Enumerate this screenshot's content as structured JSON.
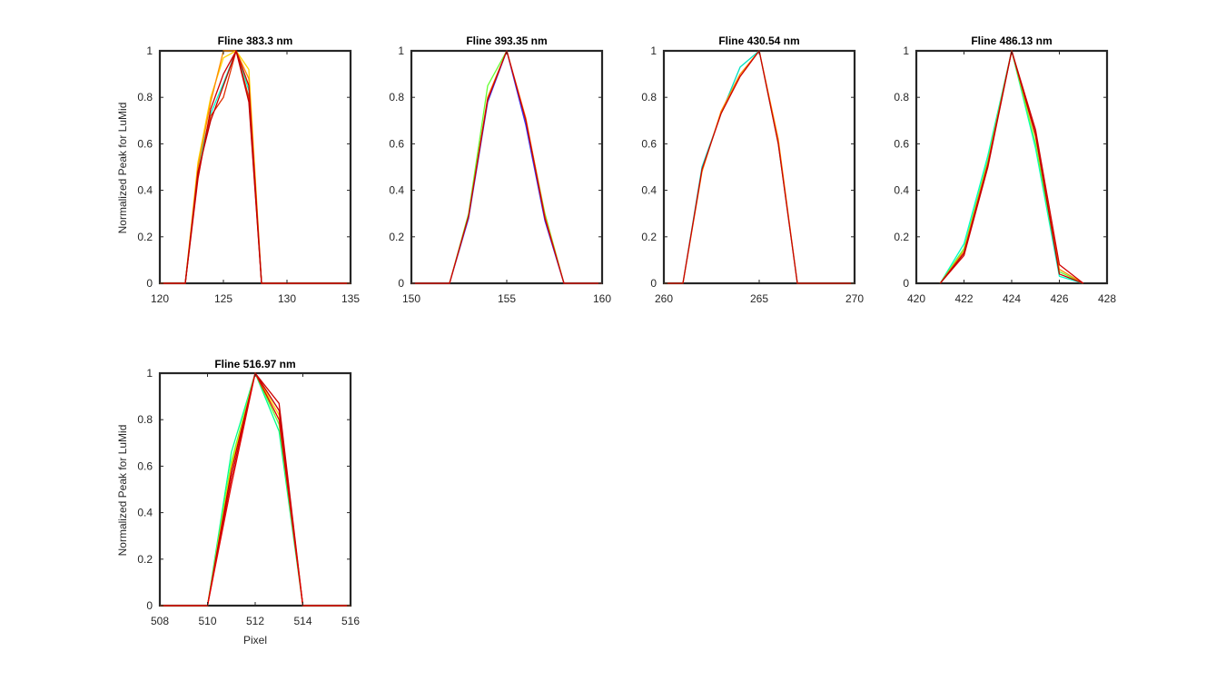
{
  "chart_data": [
    {
      "type": "line",
      "title": "Fline 383.3 nm",
      "xlabel": "",
      "ylabel": "Normalized Peak for LuMid",
      "xlim": [
        120,
        135
      ],
      "ylim": [
        0,
        1
      ],
      "xticks": [
        "120",
        "125",
        "130",
        "135"
      ],
      "yticks": [
        "0",
        "0.2",
        "0.4",
        "0.6",
        "0.8",
        "1"
      ],
      "series": [
        {
          "name": "s1",
          "color": "#00FFC8",
          "x": [
            120,
            121,
            122,
            123,
            124,
            125,
            126,
            127,
            128,
            129,
            130,
            131,
            132,
            133,
            134,
            135
          ],
          "y": [
            0,
            0,
            0,
            0.5,
            0.73,
            0.86,
            1,
            0.83,
            0,
            0,
            0,
            0,
            0,
            0,
            0,
            0
          ]
        },
        {
          "name": "s2",
          "color": "#FFD400",
          "x": [
            120,
            121,
            122,
            123,
            124,
            125,
            126,
            127,
            128,
            129,
            130,
            131,
            132,
            133,
            134,
            135
          ],
          "y": [
            0,
            0,
            0,
            0.52,
            0.8,
            0.97,
            1,
            0.92,
            0,
            0,
            0,
            0,
            0,
            0,
            0,
            0
          ]
        },
        {
          "name": "s3",
          "color": "#FF8C00",
          "x": [
            120,
            121,
            122,
            123,
            124,
            125,
            126,
            127,
            128,
            129,
            130,
            131,
            132,
            133,
            134,
            135
          ],
          "y": [
            0,
            0,
            0,
            0.5,
            0.78,
            1,
            1,
            0.88,
            0,
            0,
            0,
            0,
            0,
            0,
            0,
            0
          ]
        },
        {
          "name": "s4",
          "color": "#E03000",
          "x": [
            120,
            121,
            122,
            123,
            124,
            125,
            126,
            127,
            128,
            129,
            130,
            131,
            132,
            133,
            134,
            135
          ],
          "y": [
            0,
            0,
            0,
            0.47,
            0.72,
            0.8,
            1,
            0.8,
            0,
            0,
            0,
            0,
            0,
            0,
            0,
            0
          ]
        },
        {
          "name": "s5",
          "color": "#D00000",
          "x": [
            120,
            121,
            122,
            123,
            124,
            125,
            126,
            127,
            128,
            129,
            130,
            131,
            132,
            133,
            134,
            135
          ],
          "y": [
            0,
            0,
            0,
            0.45,
            0.75,
            0.9,
            1,
            0.85,
            0,
            0,
            0,
            0,
            0,
            0,
            0,
            0
          ]
        },
        {
          "name": "s6",
          "color": "#C00000",
          "x": [
            120,
            121,
            122,
            123,
            124,
            125,
            126,
            127,
            128,
            129,
            130,
            131,
            132,
            133,
            134,
            135
          ],
          "y": [
            0,
            0,
            0,
            0.48,
            0.7,
            0.85,
            1,
            0.78,
            0,
            0,
            0,
            0,
            0,
            0,
            0,
            0
          ]
        }
      ]
    },
    {
      "type": "line",
      "title": "Fline 393.35 nm",
      "xlabel": "",
      "ylabel": "",
      "xlim": [
        150,
        160
      ],
      "ylim": [
        0,
        1
      ],
      "xticks": [
        "150",
        "155",
        "160"
      ],
      "yticks": [
        "0",
        "0.2",
        "0.4",
        "0.6",
        "0.8",
        "1"
      ],
      "series": [
        {
          "name": "s1",
          "color": "#66FF33",
          "x": [
            150,
            151,
            152,
            153,
            154,
            155,
            156,
            157,
            158,
            159,
            160
          ],
          "y": [
            0,
            0,
            0,
            0.3,
            0.85,
            1,
            0.7,
            0.3,
            0,
            0,
            0
          ]
        },
        {
          "name": "s2",
          "color": "#3030FF",
          "x": [
            150,
            151,
            152,
            153,
            154,
            155,
            156,
            157,
            158,
            159,
            160
          ],
          "y": [
            0,
            0,
            0,
            0.28,
            0.78,
            1,
            0.68,
            0.27,
            0,
            0,
            0
          ]
        },
        {
          "name": "s3",
          "color": "#FF6A00",
          "x": [
            150,
            151,
            152,
            153,
            154,
            155,
            156,
            157,
            158,
            159,
            160
          ],
          "y": [
            0,
            0,
            0,
            0.29,
            0.8,
            1,
            0.71,
            0.29,
            0,
            0,
            0
          ]
        },
        {
          "name": "s4",
          "color": "#CC0000",
          "x": [
            150,
            151,
            152,
            153,
            154,
            155,
            156,
            157,
            158,
            159,
            160
          ],
          "y": [
            0,
            0,
            0,
            0.29,
            0.79,
            1,
            0.7,
            0.28,
            0,
            0,
            0
          ]
        }
      ]
    },
    {
      "type": "line",
      "title": "Fline 430.54 nm",
      "xlabel": "",
      "ylabel": "",
      "xlim": [
        260,
        270
      ],
      "ylim": [
        0,
        1
      ],
      "xticks": [
        "260",
        "265",
        "270"
      ],
      "yticks": [
        "0",
        "0.2",
        "0.4",
        "0.6",
        "0.8",
        "1"
      ],
      "series": [
        {
          "name": "s1",
          "color": "#00E0C0",
          "x": [
            260,
            261,
            262,
            263,
            264,
            265,
            266,
            267,
            268,
            269,
            270
          ],
          "y": [
            0,
            0,
            0.5,
            0.73,
            0.93,
            1,
            0.6,
            0,
            0,
            0,
            0
          ]
        },
        {
          "name": "s2",
          "color": "#FF8C00",
          "x": [
            260,
            261,
            262,
            263,
            264,
            265,
            266,
            267,
            268,
            269,
            270
          ],
          "y": [
            0,
            0,
            0.48,
            0.74,
            0.9,
            1,
            0.62,
            0,
            0,
            0,
            0
          ]
        },
        {
          "name": "s3",
          "color": "#CC0000",
          "x": [
            260,
            261,
            262,
            263,
            264,
            265,
            266,
            267,
            268,
            269,
            270
          ],
          "y": [
            0,
            0,
            0.49,
            0.73,
            0.89,
            1,
            0.6,
            0,
            0,
            0,
            0
          ]
        }
      ]
    },
    {
      "type": "line",
      "title": "Fline 486.13 nm",
      "xlabel": "",
      "ylabel": "",
      "xlim": [
        420,
        428
      ],
      "ylim": [
        0,
        1
      ],
      "xticks": [
        "420",
        "422",
        "424",
        "426",
        "428"
      ],
      "yticks": [
        "0",
        "0.2",
        "0.4",
        "0.6",
        "0.8",
        "1"
      ],
      "series": [
        {
          "name": "s1",
          "color": "#00FFC8",
          "x": [
            421,
            422,
            423,
            424,
            425,
            426,
            427
          ],
          "y": [
            0,
            0.17,
            0.55,
            1,
            0.58,
            0.03,
            0
          ]
        },
        {
          "name": "s2",
          "color": "#66FF33",
          "x": [
            421,
            422,
            423,
            424,
            425,
            426,
            427
          ],
          "y": [
            0,
            0.15,
            0.53,
            1,
            0.6,
            0.05,
            0
          ]
        },
        {
          "name": "s3",
          "color": "#FF8C00",
          "x": [
            421,
            422,
            423,
            424,
            425,
            426,
            427
          ],
          "y": [
            0,
            0.14,
            0.52,
            1,
            0.63,
            0.06,
            0
          ]
        },
        {
          "name": "s4",
          "color": "#D00000",
          "x": [
            421,
            422,
            423,
            424,
            425,
            426,
            427
          ],
          "y": [
            0,
            0.12,
            0.5,
            1,
            0.66,
            0.08,
            0
          ]
        },
        {
          "name": "s5",
          "color": "#C00000",
          "x": [
            421,
            422,
            423,
            424,
            425,
            426,
            427
          ],
          "y": [
            0,
            0.13,
            0.51,
            1,
            0.64,
            0.04,
            0
          ]
        }
      ]
    },
    {
      "type": "line",
      "title": "Fline 516.97 nm",
      "xlabel": "Pixel",
      "ylabel": "Normalized Peak for LuMid",
      "xlim": [
        508,
        516
      ],
      "ylim": [
        0,
        1
      ],
      "xticks": [
        "508",
        "510",
        "512",
        "514",
        "516"
      ],
      "yticks": [
        "0",
        "0.2",
        "0.4",
        "0.6",
        "0.8",
        "1"
      ],
      "series": [
        {
          "name": "s1",
          "color": "#00FF90",
          "x": [
            508,
            509,
            510,
            511,
            512,
            513,
            514,
            515,
            516
          ],
          "y": [
            0,
            0,
            0,
            0.66,
            1,
            0.75,
            0,
            0,
            0
          ]
        },
        {
          "name": "s2",
          "color": "#66FF33",
          "x": [
            508,
            509,
            510,
            511,
            512,
            513,
            514,
            515,
            516
          ],
          "y": [
            0,
            0,
            0,
            0.62,
            1,
            0.78,
            0,
            0,
            0
          ]
        },
        {
          "name": "s3",
          "color": "#FFD400",
          "x": [
            508,
            509,
            510,
            511,
            512,
            513,
            514,
            515,
            516
          ],
          "y": [
            0,
            0,
            0,
            0.6,
            1,
            0.82,
            0,
            0,
            0
          ]
        },
        {
          "name": "s4",
          "color": "#D00000",
          "x": [
            508,
            509,
            510,
            511,
            512,
            513,
            514,
            515,
            516
          ],
          "y": [
            0,
            0,
            0,
            0.55,
            1,
            0.87,
            0,
            0,
            0
          ]
        },
        {
          "name": "s5",
          "color": "#C00000",
          "x": [
            508,
            509,
            510,
            511,
            512,
            513,
            514,
            515,
            516
          ],
          "y": [
            0,
            0,
            0,
            0.58,
            1,
            0.84,
            0,
            0,
            0
          ]
        },
        {
          "name": "s6",
          "color": "#E00000",
          "x": [
            508,
            509,
            510,
            511,
            512,
            513,
            514,
            515,
            516
          ],
          "y": [
            0,
            0,
            0,
            0.52,
            1,
            0.8,
            0,
            0,
            0
          ]
        }
      ]
    }
  ]
}
